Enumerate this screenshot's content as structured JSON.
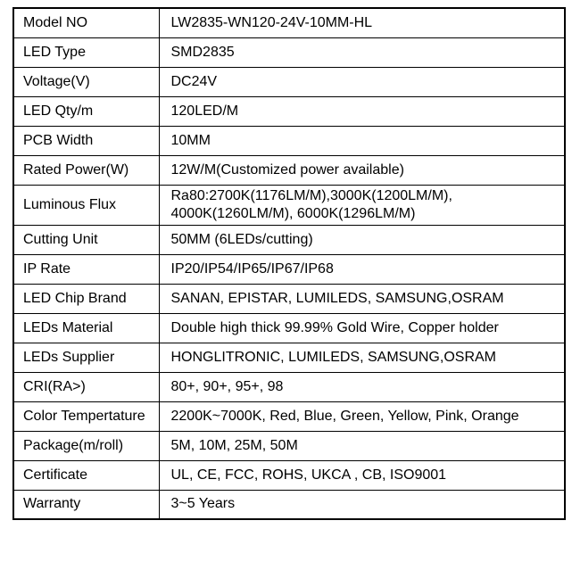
{
  "page": {
    "background_color": "#ffffff",
    "border_color": "#000000",
    "text_color": "#000000"
  },
  "table": {
    "description": "LED strip light specification table",
    "rows": [
      {
        "label": "Model NO",
        "value": "LW2835-WN120-24V-10MM-HL"
      },
      {
        "label": "LED Type",
        "value": "SMD2835"
      },
      {
        "label": "Voltage(V)",
        "value": "DC24V"
      },
      {
        "label": "LED Qty/m",
        "value": "120LED/M"
      },
      {
        "label": "PCB Width",
        "value": "10MM"
      },
      {
        "label": "Rated Power(W)",
        "value": "12W/M(Customized power available)"
      },
      {
        "label": "Luminous Flux",
        "value": "Ra80:2700K(1176LM/M),3000K(1200LM/M),\n4000K(1260LM/M), 6000K(1296LM/M)"
      },
      {
        "label": "Cutting Unit",
        "value": "50MM (6LEDs/cutting)"
      },
      {
        "label": "IP Rate",
        "value": "IP20/IP54/IP65/IP67/IP68"
      },
      {
        "label": "LED Chip Brand",
        "value": "SANAN, EPISTAR, LUMILEDS, SAMSUNG,OSRAM"
      },
      {
        "label": "LEDs Material",
        "value": "Double high thick 99.99% Gold Wire, Copper holder"
      },
      {
        "label": "LEDs Supplier",
        "value": "HONGLITRONIC, LUMILEDS, SAMSUNG,OSRAM"
      },
      {
        "label": "CRI(RA>)",
        "value": "80+, 90+, 95+, 98"
      },
      {
        "label": "Color Tempertature",
        "value": "2200K~7000K, Red, Blue, Green, Yellow, Pink, Orange"
      },
      {
        "label": "Package(m/roll)",
        "value": "5M, 10M, 25M, 50M"
      },
      {
        "label": "Certificate",
        "value": "UL, CE, FCC, ROHS, UKCA , CB, ISO9001"
      },
      {
        "label": "Warranty",
        "value": "3~5 Years"
      }
    ]
  }
}
